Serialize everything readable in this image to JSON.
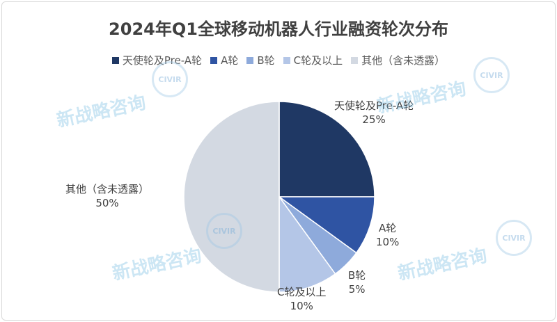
{
  "chart_data": {
    "type": "pie",
    "title": "2024年Q1全球移动机器人行业融资轮次分布",
    "categories": [
      "天使轮及Pre-A轮",
      "A轮",
      "B轮",
      "C轮及以上",
      "其他（含未透露）"
    ],
    "values": [
      25,
      10,
      5,
      10,
      50
    ],
    "value_labels": [
      "25%",
      "10%",
      "5%",
      "10%",
      "50%"
    ],
    "colors": [
      "#1f3864",
      "#2f54a3",
      "#8eaadb",
      "#b4c6e7",
      "#d3d9e2"
    ],
    "legend_position": "top",
    "start_angle": "12 o'clock",
    "direction": "clockwise"
  },
  "watermark": {
    "text": "新战略咨询",
    "logo": "CIVIR"
  }
}
